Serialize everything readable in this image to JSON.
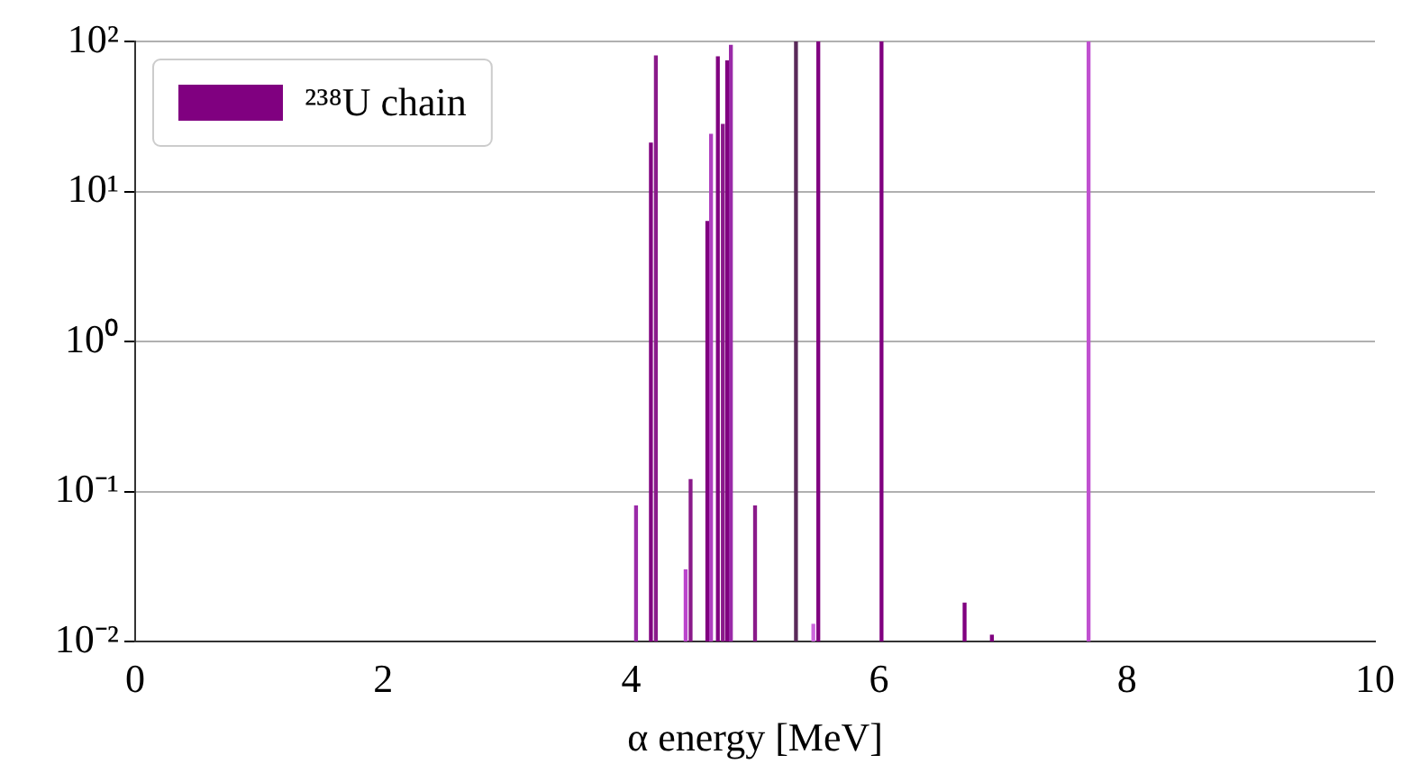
{
  "chart_data": {
    "type": "bar",
    "xlabel": "α energy [MeV]",
    "x": [
      4.04,
      4.16,
      4.2,
      4.44,
      4.48,
      4.615,
      4.645,
      4.7,
      4.74,
      4.775,
      4.805,
      5.0,
      5.33,
      5.47,
      5.51,
      6.02,
      6.69,
      6.91,
      7.69
    ],
    "series": [
      {
        "name": "²³⁸U chain",
        "color": "#800080",
        "values": [
          0.08,
          21,
          80,
          0.03,
          0.12,
          6.3,
          24,
          79,
          28,
          74,
          94,
          0.08,
          100,
          0.013,
          100,
          100,
          0.018,
          0.011,
          100
        ],
        "colors": [
          "#9a2aa8",
          "#800080",
          "#8a1a8a",
          "#bb44cc",
          "#8a1a8a",
          "#800080",
          "#b040c0",
          "#800080",
          "#8a1a8a",
          "#800080",
          "#9a2aa8",
          "#8a1a8a",
          "#5a2a5a",
          "#cc66dd",
          "#800080",
          "#800080",
          "#800080",
          "#800080",
          "#c050d0"
        ]
      }
    ],
    "xlim": [
      0,
      10
    ],
    "xticks": [
      0,
      2,
      4,
      6,
      8,
      10
    ],
    "log": "y",
    "ylim": [
      0.01,
      100
    ],
    "yticks": [
      {
        "value": 0.01,
        "label": "10⁻²"
      },
      {
        "value": 0.1,
        "label": "10⁻¹"
      },
      {
        "value": 1,
        "label": "10⁰"
      },
      {
        "value": 10,
        "label": "10¹"
      },
      {
        "value": 100,
        "label": "10²"
      }
    ],
    "grid": "y",
    "legend": "top left"
  }
}
